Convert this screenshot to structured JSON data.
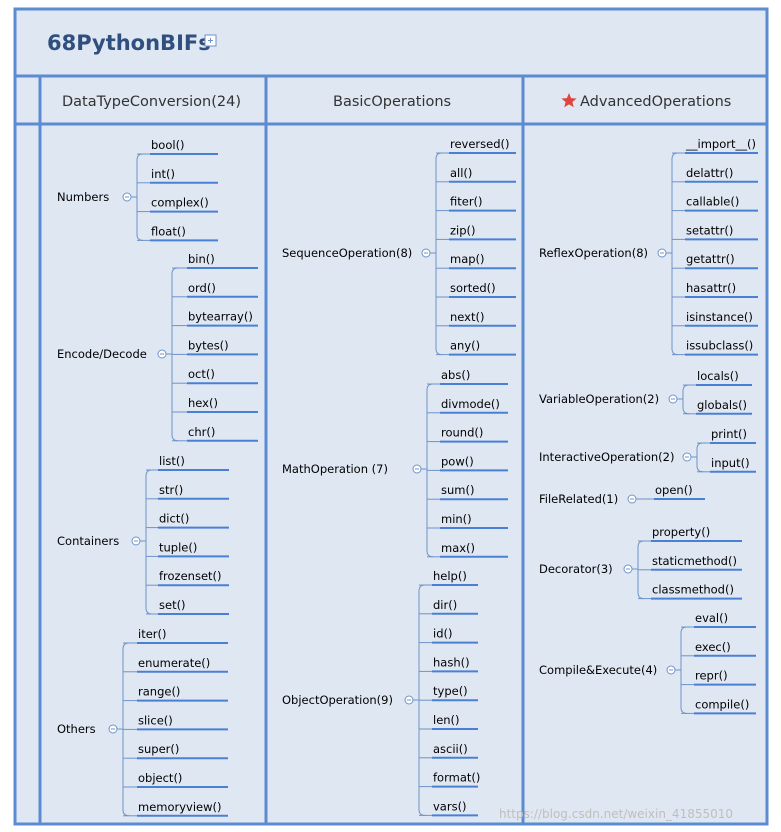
{
  "title": "68PythonBIFs",
  "watermark": "https://blog.csdn.net/weixin_41855010",
  "colors": {
    "border": "#5b8bd0",
    "background": "#dfe7f3",
    "leaf_underline": "#4a80d4",
    "branch_line": "#6f93c8",
    "star": "#e0443e"
  },
  "columns": [
    {
      "header": "DataTypeConversion(24)",
      "star": false,
      "groups": [
        {
          "name": "Numbers",
          "items": [
            "bool()",
            "int()",
            "complex()",
            "float()"
          ]
        },
        {
          "name": "Encode/Decode",
          "items": [
            "bin()",
            "ord()",
            "bytearray()",
            "bytes()",
            "oct()",
            "hex()",
            "chr()"
          ]
        },
        {
          "name": "Containers",
          "items": [
            "list()",
            "str()",
            "dict()",
            "tuple()",
            "frozenset()",
            "set()"
          ]
        },
        {
          "name": "Others",
          "items": [
            "iter()",
            "enumerate()",
            "range()",
            "slice()",
            "super()",
            "object()",
            "memoryview()"
          ]
        }
      ]
    },
    {
      "header": "BasicOperations",
      "star": false,
      "groups": [
        {
          "name": "SequenceOperation(8)",
          "items": [
            "reversed()",
            "all()",
            "fiter()",
            "zip()",
            "map()",
            "sorted()",
            "next()",
            "any()"
          ]
        },
        {
          "name": "MathOperation  (7)",
          "items": [
            "abs()",
            "divmode()",
            "round()",
            "pow()",
            "sum()",
            "min()",
            "max()"
          ]
        },
        {
          "name": "ObjectOperation(9)",
          "items": [
            "help()",
            "dir()",
            "id()",
            "hash()",
            "type()",
            "len()",
            "ascii()",
            "format()",
            "vars()"
          ]
        }
      ]
    },
    {
      "header": "AdvancedOperations",
      "star": true,
      "groups": [
        {
          "name": "ReflexOperation(8)",
          "items": [
            "__import__()",
            "delattr()",
            "callable()",
            "setattr()",
            "getattr()",
            "hasattr()",
            "isinstance()",
            "issubclass()"
          ]
        },
        {
          "name": "VariableOperation(2)",
          "items": [
            "locals()",
            "globals()"
          ]
        },
        {
          "name": "InteractiveOperation(2)",
          "items": [
            "print()",
            "input()"
          ]
        },
        {
          "name": "FileRelated(1)",
          "items": [
            "open()"
          ]
        },
        {
          "name": "Decorator(3)",
          "items": [
            "property()",
            "staticmethod()",
            "classmethod()"
          ]
        },
        {
          "name": "Compile&Execute(4)",
          "items": [
            "eval()",
            "exec()",
            "repr()",
            "compile()"
          ]
        }
      ]
    }
  ]
}
